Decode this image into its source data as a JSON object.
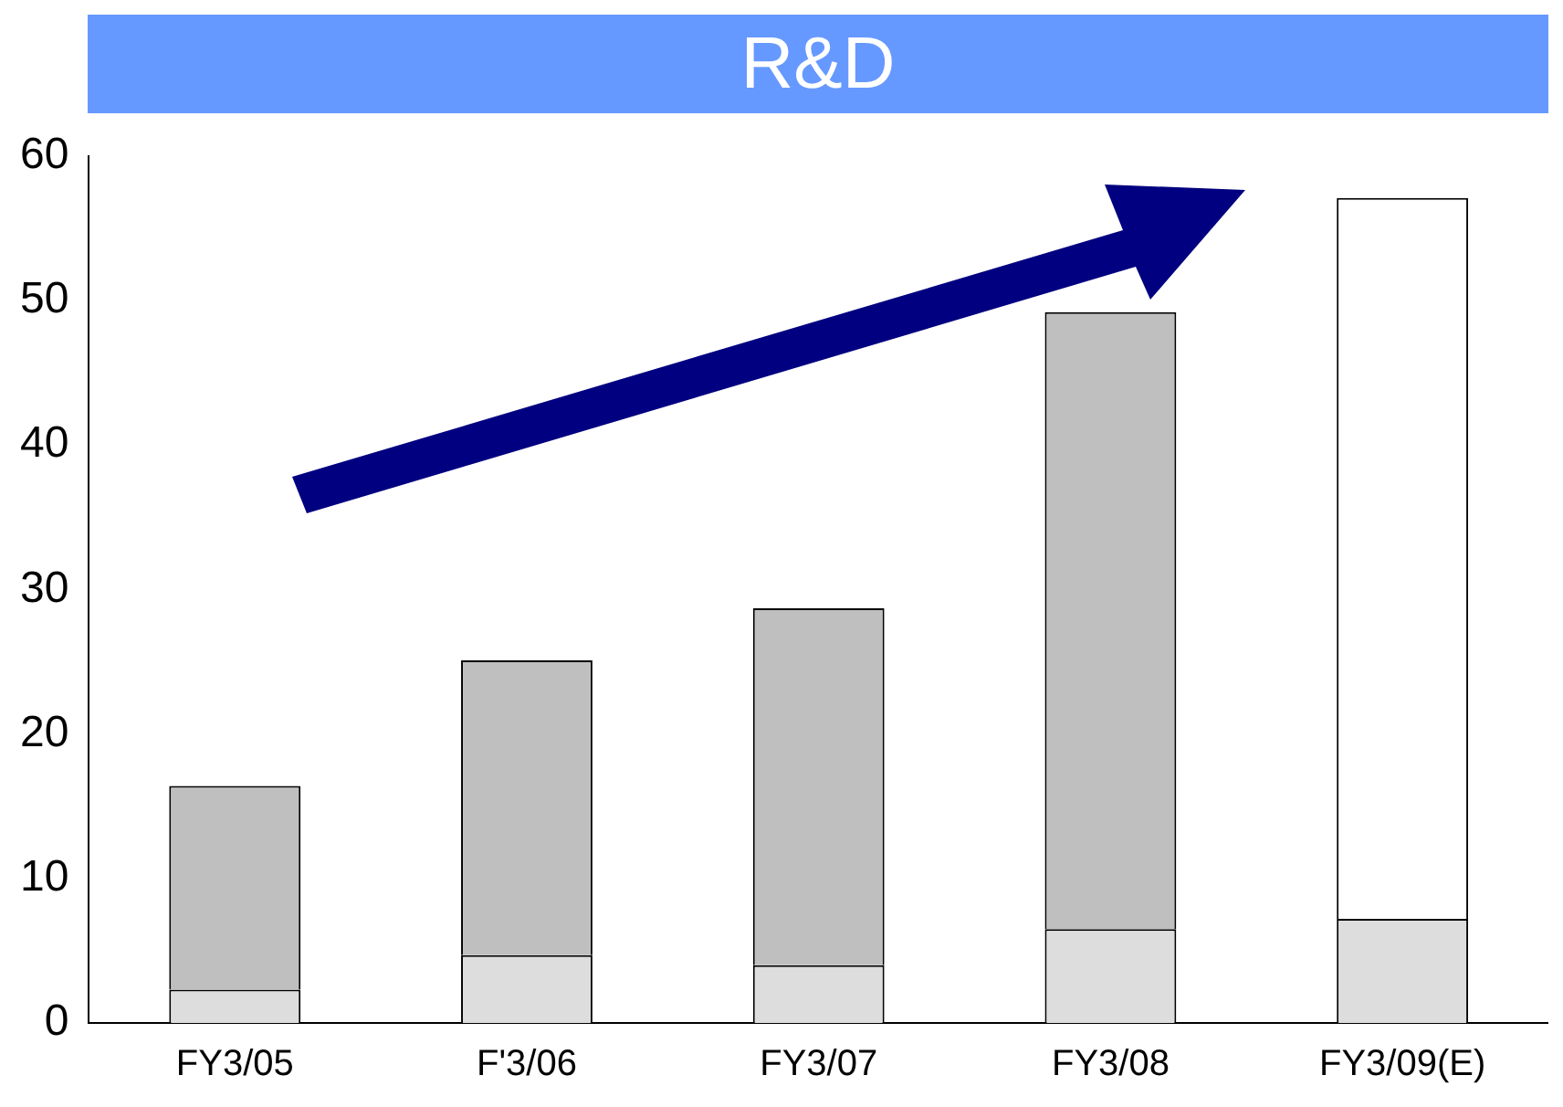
{
  "chart_data": {
    "type": "bar",
    "title": "R&D",
    "categories": [
      "FY3/05",
      "F'3/06",
      "FY3/07",
      "FY3/08",
      "FY3/09(E)"
    ],
    "stacked": true,
    "series": [
      {
        "color": "#dddddd",
        "values": [
          2.3,
          4.7,
          4.0,
          6.5,
          7.2
        ]
      },
      {
        "colors": [
          "#bfbfbf",
          "#bfbfbf",
          "#bfbfbf",
          "#bfbfbf",
          "#ffffff"
        ],
        "values": [
          14.1,
          20.4,
          24.7,
          42.7,
          49.9
        ]
      }
    ],
    "ylim": [
      0,
      60
    ],
    "yticks": [
      0,
      10,
      20,
      30,
      40,
      50,
      60
    ],
    "grid": false,
    "legend": false
  }
}
